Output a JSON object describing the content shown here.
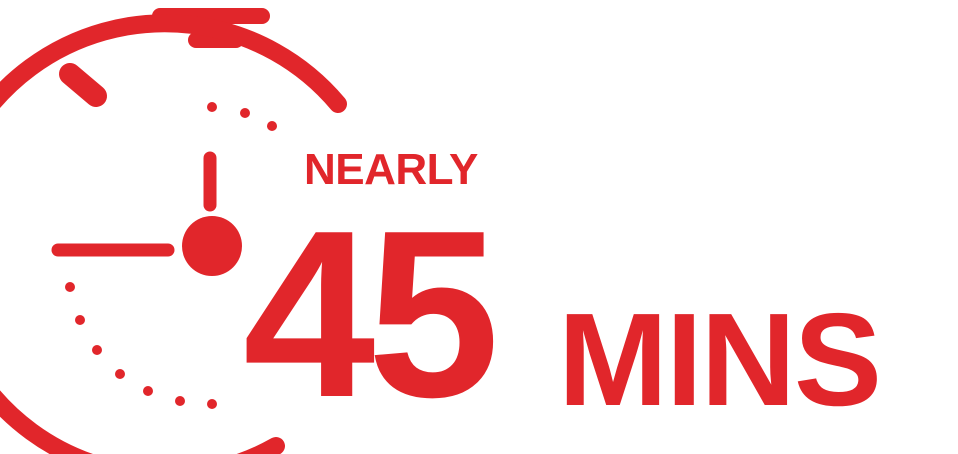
{
  "graphic": {
    "icon": "stopwatch-icon",
    "accent_color": "#e1262b",
    "qualifier": "NEARLY",
    "number": "45",
    "unit": "MINS"
  }
}
